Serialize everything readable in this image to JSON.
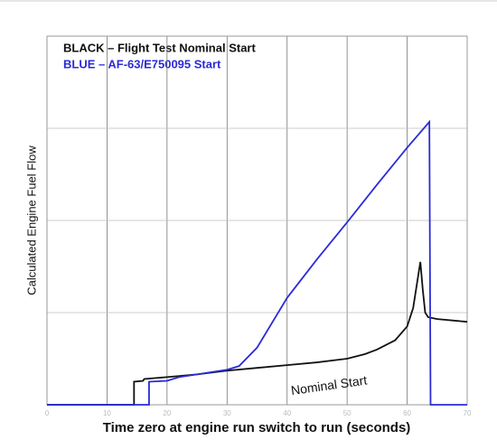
{
  "chart_data": {
    "type": "line",
    "legend_title_lines": [],
    "xlabel": "Time zero at engine run switch to run (seconds)",
    "ylabel": "Calculated Engine Fuel Flow",
    "annotations": [
      {
        "text": "Nominal Start",
        "x": 47,
        "y": 0.2,
        "rotate": -8
      }
    ],
    "xlim": [
      0,
      70
    ],
    "xticks": [
      0,
      10,
      20,
      30,
      40,
      50,
      60,
      70
    ],
    "ylim": [
      0,
      4
    ],
    "yticks": [
      1,
      2,
      3
    ],
    "ytick_labels": false,
    "grid": true,
    "series": [
      {
        "name": "BLACK – Flight Test Nominal Start",
        "color": "#111111",
        "x": [
          0,
          14.5,
          14.5,
          16,
          16.2,
          20,
          25,
          30,
          35,
          40,
          45,
          50,
          53,
          55,
          58,
          60,
          61,
          62.2,
          62.6,
          63,
          63.5,
          65,
          70
        ],
        "values": [
          0,
          0,
          0.25,
          0.26,
          0.28,
          0.3,
          0.33,
          0.37,
          0.4,
          0.43,
          0.46,
          0.5,
          0.55,
          0.6,
          0.7,
          0.85,
          1.05,
          1.55,
          1.25,
          1.0,
          0.95,
          0.93,
          0.9
        ]
      },
      {
        "name": "BLUE – AF-63/E750095 Start",
        "color": "#2b2bd6",
        "x": [
          0,
          17,
          17,
          20,
          22,
          25,
          28,
          30,
          32,
          35,
          40,
          45,
          50,
          55,
          60,
          63.7,
          63.9,
          70
        ],
        "values": [
          0,
          0,
          0.25,
          0.26,
          0.3,
          0.33,
          0.36,
          0.38,
          0.42,
          0.62,
          1.16,
          1.58,
          1.98,
          2.39,
          2.79,
          3.07,
          0,
          0
        ]
      }
    ]
  }
}
